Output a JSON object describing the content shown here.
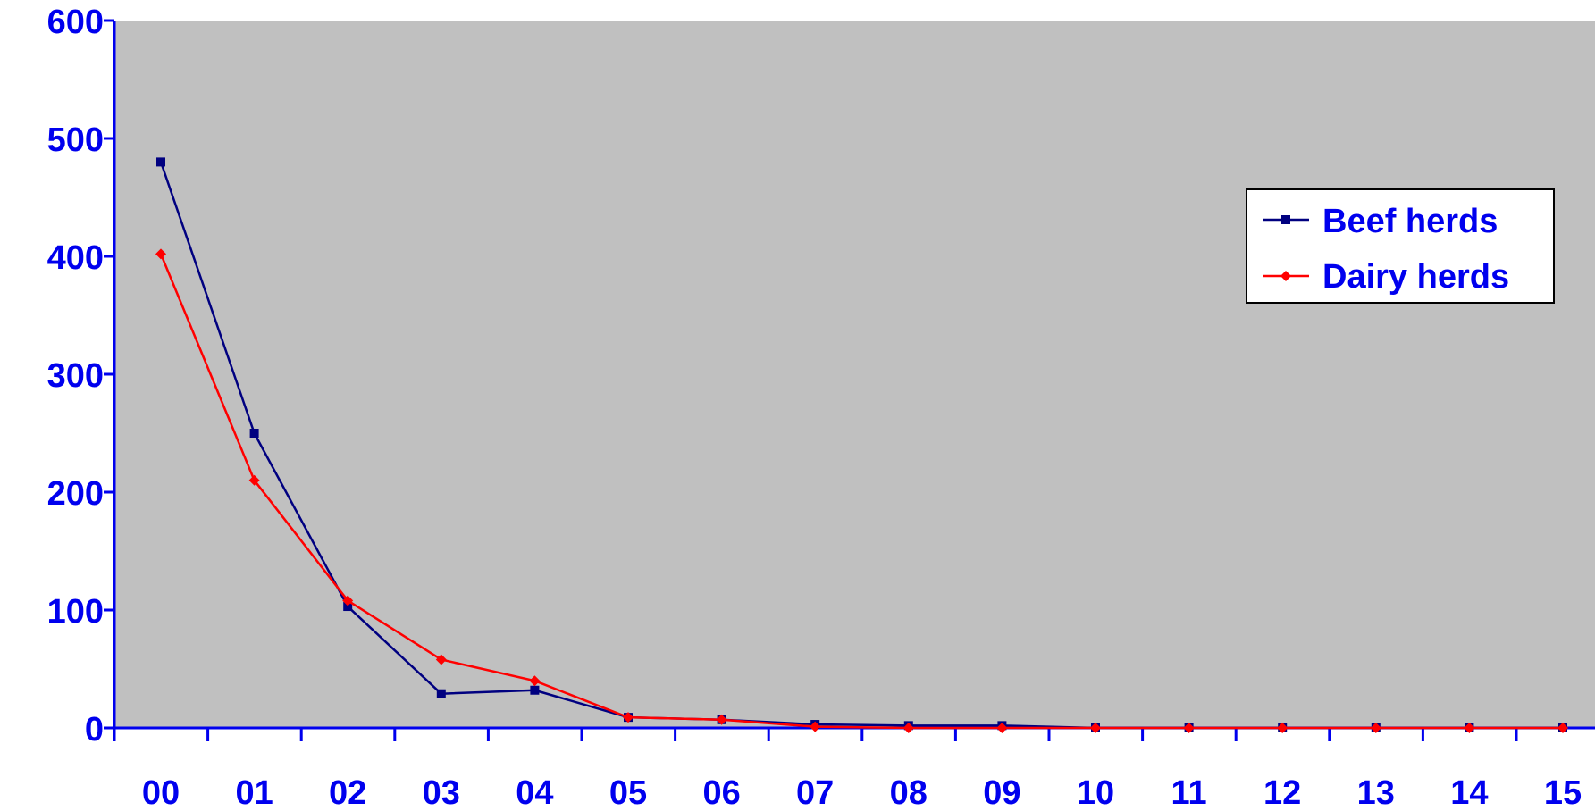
{
  "chart_data": {
    "type": "line",
    "categories": [
      "00",
      "01",
      "02",
      "03",
      "04",
      "05",
      "06",
      "07",
      "08",
      "09",
      "10",
      "11",
      "12",
      "13",
      "14",
      "15"
    ],
    "series": [
      {
        "name": "Beef herds",
        "values": [
          480,
          250,
          103,
          29,
          32,
          9,
          7,
          3,
          2,
          2,
          0,
          0,
          0,
          0,
          0,
          0
        ],
        "color": "#000080",
        "marker": "square"
      },
      {
        "name": "Dairy herds",
        "values": [
          402,
          210,
          108,
          58,
          40,
          9,
          7,
          1,
          0,
          0,
          0,
          0,
          0,
          0,
          0,
          0
        ],
        "color": "#ff0000",
        "marker": "diamond"
      }
    ],
    "ylim": [
      0,
      600
    ],
    "yticks": [
      "0",
      "100",
      "200",
      "300",
      "400",
      "500",
      "600"
    ],
    "grid": false,
    "plot_background": "#c0c0c0",
    "axis_color": "#0000ee",
    "legend_position": "top-right",
    "title": "",
    "xlabel": "",
    "ylabel": ""
  }
}
